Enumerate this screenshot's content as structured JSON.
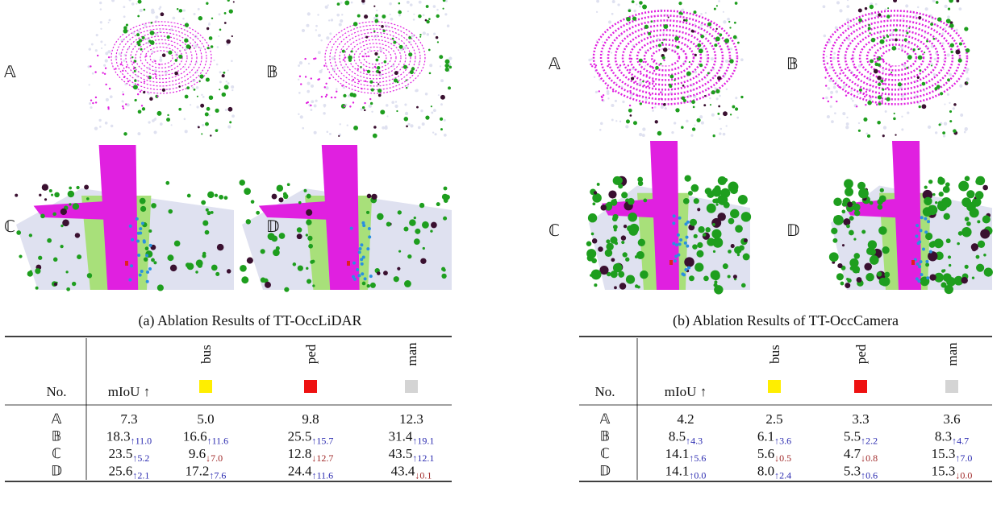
{
  "panels": [
    {
      "labels": [
        "𝔸",
        "𝔹",
        "ℂ",
        "𝔻"
      ],
      "caption": "(a) Ablation Results of TT-OccLiDAR",
      "table": {
        "header": [
          "No.",
          "mIoU ↑",
          "bus",
          "ped",
          "man"
        ],
        "rows": [
          {
            "no": "𝔸",
            "cells": [
              {
                "value": "7.3"
              },
              {
                "value": "5.0"
              },
              {
                "value": "9.8"
              },
              {
                "value": "12.3"
              }
            ]
          },
          {
            "no": "𝔹",
            "cells": [
              {
                "value": "18.3",
                "delta": "↑11.0"
              },
              {
                "value": "16.6",
                "delta": "↑11.6"
              },
              {
                "value": "25.5",
                "delta": "↑15.7"
              },
              {
                "value": "31.4",
                "delta": "↑19.1"
              }
            ]
          },
          {
            "no": "ℂ",
            "cells": [
              {
                "value": "23.5",
                "delta": "↑5.2"
              },
              {
                "value": "9.6",
                "delta": "↓7.0"
              },
              {
                "value": "12.8",
                "delta": "↓12.7"
              },
              {
                "value": "43.5",
                "delta": "↑12.1"
              }
            ]
          },
          {
            "no": "𝔻",
            "cells": [
              {
                "value": "25.6",
                "delta": "↑2.1"
              },
              {
                "value": "17.2",
                "delta": "↑7.6"
              },
              {
                "value": "24.4",
                "delta": "↑11.6"
              },
              {
                "value": "43.4",
                "delta": "↓0.1"
              }
            ]
          }
        ]
      }
    },
    {
      "labels": [
        "𝔸",
        "𝔹",
        "ℂ",
        "𝔻"
      ],
      "caption": "(b) Ablation Results of TT-OccCamera",
      "table": {
        "header": [
          "No.",
          "mIoU ↑",
          "bus",
          "ped",
          "man"
        ],
        "rows": [
          {
            "no": "𝔸",
            "cells": [
              {
                "value": "4.2"
              },
              {
                "value": "2.5"
              },
              {
                "value": "3.3"
              },
              {
                "value": "3.6"
              }
            ]
          },
          {
            "no": "𝔹",
            "cells": [
              {
                "value": "8.5",
                "delta": "↑4.3"
              },
              {
                "value": "6.1",
                "delta": "↑3.6"
              },
              {
                "value": "5.5",
                "delta": "↑2.2"
              },
              {
                "value": "8.3",
                "delta": "↑4.7"
              }
            ]
          },
          {
            "no": "ℂ",
            "cells": [
              {
                "value": "14.1",
                "delta": "↑5.6"
              },
              {
                "value": "5.6",
                "delta": "↓0.5"
              },
              {
                "value": "4.7",
                "delta": "↓0.8"
              },
              {
                "value": "15.3",
                "delta": "↑7.0"
              }
            ]
          },
          {
            "no": "𝔻",
            "cells": [
              {
                "value": "14.1",
                "delta": "↑0.0"
              },
              {
                "value": "8.0",
                "delta": "↑2.4"
              },
              {
                "value": "5.3",
                "delta": "↑0.6"
              },
              {
                "value": "15.3",
                "delta": "↓0.0"
              }
            ]
          }
        ]
      }
    }
  ]
}
